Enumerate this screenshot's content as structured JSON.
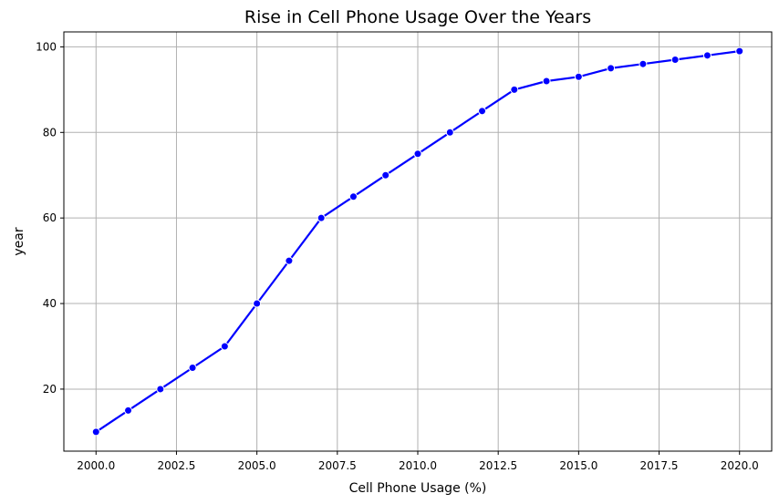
{
  "chart_data": {
    "type": "line",
    "title": "Rise in Cell Phone Usage Over the Years",
    "xlabel": "Cell Phone Usage (%)",
    "ylabel": "year",
    "xlim": [
      1999.0,
      2021.0
    ],
    "ylim": [
      5.5,
      103.5
    ],
    "xticks": [
      2000.0,
      2002.5,
      2005.0,
      2007.5,
      2010.0,
      2012.5,
      2015.0,
      2017.5,
      2020.0
    ],
    "xtick_labels": [
      "2000.0",
      "2002.5",
      "2005.0",
      "2007.5",
      "2010.0",
      "2012.5",
      "2015.0",
      "2017.5",
      "2020.0"
    ],
    "yticks": [
      20,
      40,
      60,
      80,
      100
    ],
    "ytick_labels": [
      "20",
      "40",
      "60",
      "80",
      "100"
    ],
    "grid": true,
    "series": [
      {
        "color": "#0000ff",
        "marker": "circle",
        "x": [
          2000,
          2001,
          2002,
          2003,
          2004,
          2005,
          2006,
          2007,
          2008,
          2009,
          2010,
          2011,
          2012,
          2013,
          2014,
          2015,
          2016,
          2017,
          2018,
          2019,
          2020
        ],
        "y": [
          10,
          15,
          20,
          25,
          30,
          40,
          50,
          60,
          65,
          70,
          75,
          80,
          85,
          90,
          92,
          93,
          95,
          96,
          97,
          98,
          99
        ]
      }
    ]
  }
}
